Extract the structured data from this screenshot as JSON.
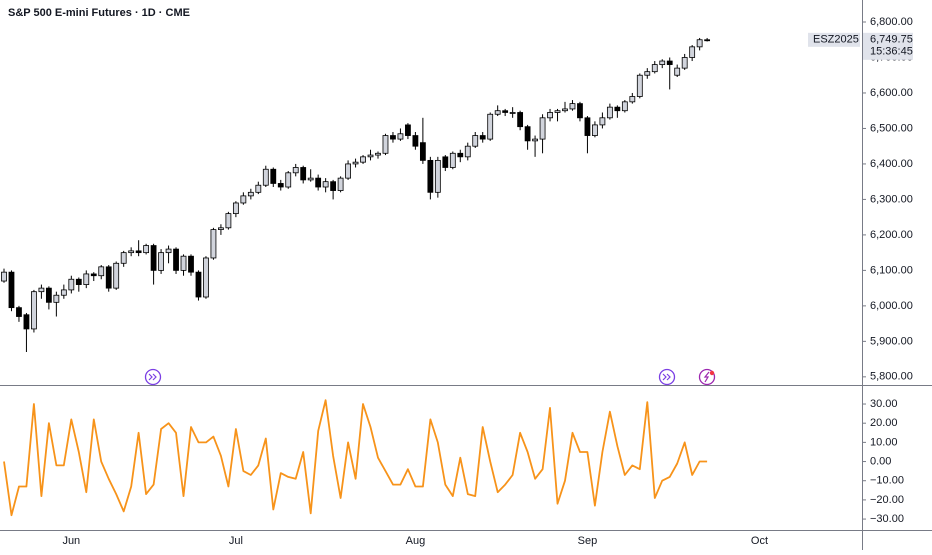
{
  "chart_data": [
    {
      "type": "candlestick",
      "title": "S&P 500 E-mini Futures · 1D · CME",
      "categories": [
        null,
        null,
        null,
        null,
        null,
        null,
        null,
        null,
        null,
        "Jun",
        null,
        null,
        null,
        null,
        null,
        null,
        null,
        null,
        null,
        null,
        null,
        null,
        null,
        null,
        null,
        null,
        null,
        null,
        null,
        null,
        null,
        "Jul",
        null,
        null,
        null,
        null,
        null,
        null,
        null,
        null,
        null,
        null,
        null,
        null,
        null,
        null,
        null,
        null,
        null,
        null,
        null,
        null,
        null,
        null,
        null,
        "Aug",
        null,
        null,
        null,
        null,
        null,
        null,
        null,
        null,
        null,
        null,
        null,
        null,
        null,
        null,
        null,
        null,
        null,
        null,
        null,
        null,
        null,
        null,
        "Sep",
        null,
        null,
        null,
        null,
        null,
        null,
        null,
        null,
        null,
        null,
        null,
        null,
        null,
        null,
        null,
        null,
        null,
        null,
        null,
        null,
        null,
        null,
        "Oct"
      ],
      "open": [
        6070,
        6095,
        5995,
        5975,
        5935,
        6040,
        6050,
        6010,
        6030,
        6045,
        6075,
        6060,
        6090,
        6085,
        6110,
        6050,
        6120,
        6150,
        6155,
        6150,
        6170,
        6100,
        6150,
        6160,
        6100,
        6140,
        6095,
        6025,
        6135,
        6215,
        6220,
        6260,
        6290,
        6310,
        6320,
        6340,
        6385,
        6345,
        6335,
        6375,
        6390,
        6355,
        6360,
        6335,
        6350,
        6325,
        6360,
        6400,
        6405,
        6420,
        6425,
        6430,
        6480,
        6470,
        6510,
        6480,
        6460,
        6410,
        6320,
        6420,
        6390,
        6430,
        6420,
        6450,
        6480,
        6470,
        6540,
        6550,
        6545,
        6545,
        6505,
        6465,
        6470,
        6530,
        6545,
        6550,
        6555,
        6570,
        6530,
        6480,
        6510,
        6530,
        6560,
        6550,
        6575,
        6590,
        6650,
        6660,
        6680,
        6690,
        6650,
        6670,
        6700,
        6730,
        6750,
        null,
        null,
        null,
        null,
        null,
        null,
        null
      ],
      "high": [
        6105,
        6100,
        6000,
        5980,
        6045,
        6060,
        6055,
        6040,
        6060,
        6085,
        6080,
        6100,
        6095,
        6115,
        6115,
        6125,
        6155,
        6165,
        6185,
        6175,
        6175,
        6160,
        6170,
        6165,
        6145,
        6145,
        6100,
        6140,
        6220,
        6230,
        6265,
        6295,
        6320,
        6330,
        6350,
        6395,
        6390,
        6355,
        6380,
        6400,
        6395,
        6385,
        6370,
        6360,
        6355,
        6365,
        6410,
        6415,
        6425,
        6440,
        6435,
        6485,
        6490,
        6500,
        6515,
        6490,
        6530,
        6420,
        6420,
        6425,
        6435,
        6440,
        6460,
        6490,
        6490,
        6545,
        6565,
        6555,
        6560,
        6550,
        6510,
        6480,
        6540,
        6555,
        6555,
        6575,
        6580,
        6575,
        6535,
        6520,
        6545,
        6570,
        6565,
        6580,
        6600,
        6655,
        6670,
        6690,
        6695,
        6700,
        6680,
        6710,
        6735,
        6755,
        6755,
        null,
        null,
        null,
        null,
        null,
        null,
        null
      ],
      "low": [
        6065,
        5985,
        5955,
        5870,
        5925,
        6020,
        5990,
        5970,
        6020,
        6035,
        6040,
        6050,
        6070,
        6075,
        6040,
        6045,
        6110,
        6140,
        6140,
        6145,
        6060,
        6090,
        6120,
        6090,
        6085,
        6085,
        6015,
        6020,
        6130,
        6200,
        6215,
        6250,
        6285,
        6300,
        6315,
        6335,
        6335,
        6325,
        6330,
        6365,
        6345,
        6350,
        6325,
        6320,
        6300,
        6320,
        6355,
        6390,
        6400,
        6410,
        6415,
        6425,
        6460,
        6465,
        6470,
        6440,
        6400,
        6300,
        6305,
        6380,
        6385,
        6405,
        6410,
        6445,
        6460,
        6465,
        6535,
        6535,
        6530,
        6495,
        6440,
        6420,
        6430,
        6520,
        6520,
        6545,
        6550,
        6520,
        6430,
        6475,
        6500,
        6525,
        6530,
        6545,
        6570,
        6585,
        6640,
        6655,
        6670,
        6610,
        6645,
        6665,
        6690,
        6720,
        6745,
        null,
        null,
        null,
        null,
        null,
        null,
        null
      ],
      "close": [
        6095,
        5995,
        5970,
        5935,
        6040,
        6050,
        6010,
        6030,
        6045,
        6075,
        6060,
        6090,
        6085,
        6110,
        6050,
        6120,
        6150,
        6155,
        6150,
        6170,
        6100,
        6150,
        6160,
        6100,
        6140,
        6095,
        6025,
        6135,
        6215,
        6220,
        6260,
        6290,
        6310,
        6320,
        6340,
        6385,
        6345,
        6335,
        6375,
        6390,
        6355,
        6360,
        6335,
        6350,
        6325,
        6360,
        6400,
        6405,
        6420,
        6425,
        6430,
        6480,
        6470,
        6485,
        6480,
        6450,
        6410,
        6320,
        6410,
        6390,
        6430,
        6420,
        6450,
        6480,
        6470,
        6540,
        6550,
        6545,
        6545,
        6505,
        6465,
        6470,
        6530,
        6545,
        6550,
        6555,
        6570,
        6530,
        6480,
        6510,
        6530,
        6560,
        6550,
        6575,
        6590,
        6650,
        6660,
        6680,
        6690,
        6680,
        6670,
        6700,
        6730,
        6750,
        6749.75,
        null,
        null,
        null,
        null,
        null,
        null,
        null
      ],
      "up_color": "#d1d4dc",
      "down_color": "#000000",
      "ylim": [
        5777,
        6862
      ],
      "yticks": [
        {
          "value": 5800,
          "label": "5,800.00"
        },
        {
          "value": 5900,
          "label": "5,900.00"
        },
        {
          "value": 6000,
          "label": "6,000.00"
        },
        {
          "value": 6100,
          "label": "6,100.00"
        },
        {
          "value": 6200,
          "label": "6,200.00"
        },
        {
          "value": 6300,
          "label": "6,300.00"
        },
        {
          "value": 6400,
          "label": "6,400.00"
        },
        {
          "value": 6500,
          "label": "6,500.00"
        },
        {
          "value": 6600,
          "label": "6,600.00"
        },
        {
          "value": 6700,
          "label": "6,700.00"
        },
        {
          "value": 6800,
          "label": "6,800.00"
        }
      ],
      "price_label": {
        "symbol": "ESZ2025",
        "price": "6,749.75",
        "countdown": "15:36:45"
      }
    },
    {
      "type": "line",
      "color": "#f7931a",
      "values": [
        0,
        -28,
        -13,
        -13,
        30,
        -18,
        20,
        -2,
        -2,
        22,
        5,
        -16,
        22,
        0,
        -9,
        -17,
        -26,
        -13,
        15,
        -17,
        -12,
        17,
        20,
        15,
        -18,
        18,
        10,
        10,
        13,
        3,
        -13,
        17,
        -5,
        -7,
        -2,
        12,
        -25,
        -6,
        -8,
        -9,
        5,
        -27,
        16,
        32,
        3,
        -19,
        10,
        -9,
        30,
        18,
        2,
        -5,
        -12,
        -12,
        -4,
        -13,
        -13,
        22,
        10,
        -12,
        -18,
        2,
        -17,
        -18,
        18,
        0,
        -16,
        -12,
        -7,
        15,
        5,
        -9,
        -4,
        28,
        -22,
        -10,
        15,
        5,
        5,
        -23,
        5,
        26,
        8,
        -7,
        -2,
        -4,
        31,
        -19,
        -10,
        -8,
        -1,
        10,
        -7,
        0,
        0,
        null,
        null,
        null,
        null,
        null,
        null,
        null
      ],
      "ylim": [
        -35.7,
        39.4
      ],
      "yticks": [
        {
          "value": -30,
          "label": "−30.00"
        },
        {
          "value": -20,
          "label": "−20.00"
        },
        {
          "value": -10,
          "label": "−10.00"
        },
        {
          "value": 0,
          "label": "0.00"
        },
        {
          "value": 10,
          "label": "10.00"
        },
        {
          "value": 20,
          "label": "20.00"
        },
        {
          "value": 30,
          "label": "30.00"
        }
      ]
    }
  ]
}
